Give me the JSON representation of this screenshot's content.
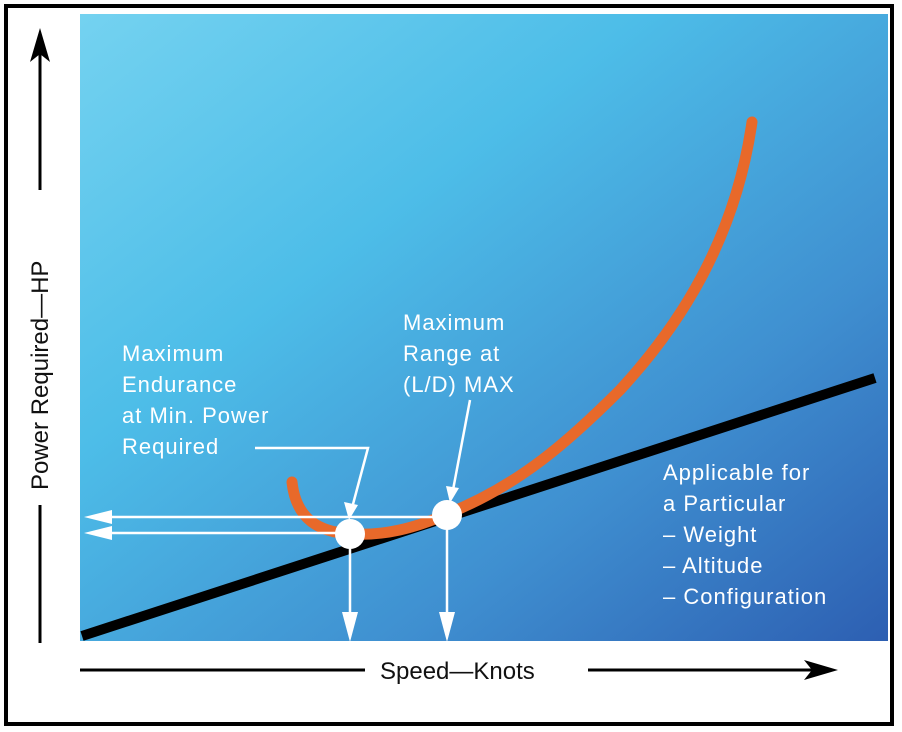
{
  "diagram": {
    "y_axis_label": "Power Required—HP",
    "x_axis_label": "Speed—Knots",
    "annotations": {
      "endurance": [
        "Maximum",
        "Endurance",
        "at Min. Power",
        "Required"
      ],
      "range": [
        "Maximum",
        "Range at",
        "(L/D) MAX"
      ],
      "applicable": [
        "Applicable for",
        "a Particular",
        "– Weight",
        "– Altitude",
        "– Configuration"
      ]
    },
    "colors": {
      "background_top": "#5cc8ec",
      "background_bottom": "#2f62b5",
      "curve": "#e8692a",
      "tangent_line": "#000000",
      "annotation": "#ffffff"
    }
  }
}
